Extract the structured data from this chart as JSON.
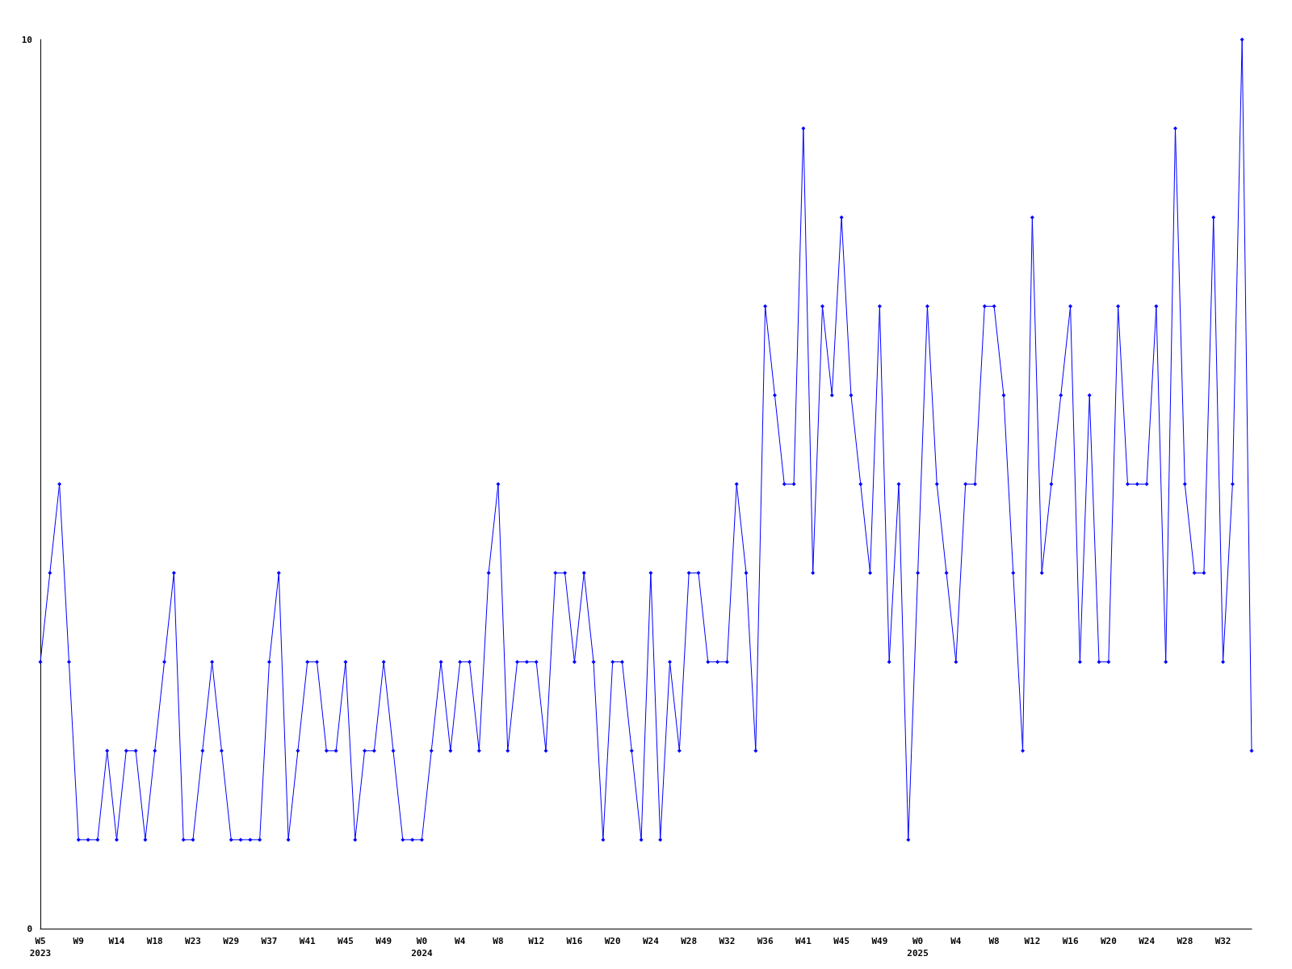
{
  "chart_data": {
    "type": "line",
    "categories": [
      "W5\n2023",
      null,
      null,
      null,
      "W9",
      null,
      null,
      null,
      "W14",
      null,
      null,
      null,
      "W18",
      null,
      null,
      null,
      "W23",
      null,
      null,
      null,
      "W29",
      null,
      null,
      null,
      "W37",
      null,
      null,
      null,
      "W41",
      null,
      null,
      null,
      "W45",
      null,
      null,
      null,
      "W49",
      null,
      null,
      null,
      "W0\n2024",
      null,
      null,
      null,
      "W4",
      null,
      null,
      null,
      "W8",
      null,
      null,
      null,
      "W12",
      null,
      null,
      null,
      "W16",
      null,
      null,
      null,
      "W20",
      null,
      null,
      null,
      "W24",
      null,
      null,
      null,
      "W28",
      null,
      null,
      null,
      "W32",
      null,
      null,
      null,
      "W36",
      null,
      null,
      null,
      "W41",
      null,
      null,
      null,
      "W45",
      null,
      null,
      null,
      "W49",
      null,
      null,
      null,
      "W0\n2025",
      null,
      null,
      null,
      "W4",
      null,
      null,
      null,
      "W8",
      null,
      null,
      null,
      "W12",
      null,
      null,
      null,
      "W16",
      null,
      null,
      null,
      "W20",
      null,
      null,
      null,
      "W24",
      null,
      null,
      null,
      "W28",
      null,
      null,
      null,
      "W32",
      null,
      null,
      null
    ],
    "series": [
      {
        "color": "#0000ff",
        "values": [
          3,
          4,
          5,
          3,
          1,
          1,
          1,
          2,
          1,
          2,
          2,
          1,
          2,
          3,
          4,
          1,
          1,
          2,
          3,
          2,
          1,
          1,
          1,
          1,
          3,
          4,
          1,
          2,
          3,
          3,
          2,
          2,
          3,
          1,
          2,
          2,
          3,
          2,
          1,
          1,
          1,
          2,
          3,
          2,
          3,
          3,
          2,
          4,
          5,
          2,
          3,
          3,
          3,
          2,
          4,
          4,
          3,
          4,
          3,
          1,
          3,
          3,
          2,
          1,
          4,
          1,
          3,
          2,
          4,
          4,
          3,
          3,
          3,
          5,
          4,
          2,
          7,
          6,
          5,
          5,
          9,
          4,
          7,
          6,
          8,
          6,
          5,
          4,
          7,
          3,
          5,
          1,
          4,
          7,
          5,
          4,
          3,
          5,
          5,
          7,
          7,
          6,
          4,
          2,
          8,
          4,
          5,
          6,
          7,
          3,
          6,
          3,
          3,
          7,
          5,
          5,
          5,
          7,
          3,
          9,
          5,
          4,
          4,
          8,
          3,
          5,
          10,
          2
        ]
      }
    ],
    "ylim": [
      0,
      10
    ],
    "yticks": [
      0,
      10
    ],
    "grid": false,
    "marker": "diamond",
    "line_style": "solid"
  }
}
